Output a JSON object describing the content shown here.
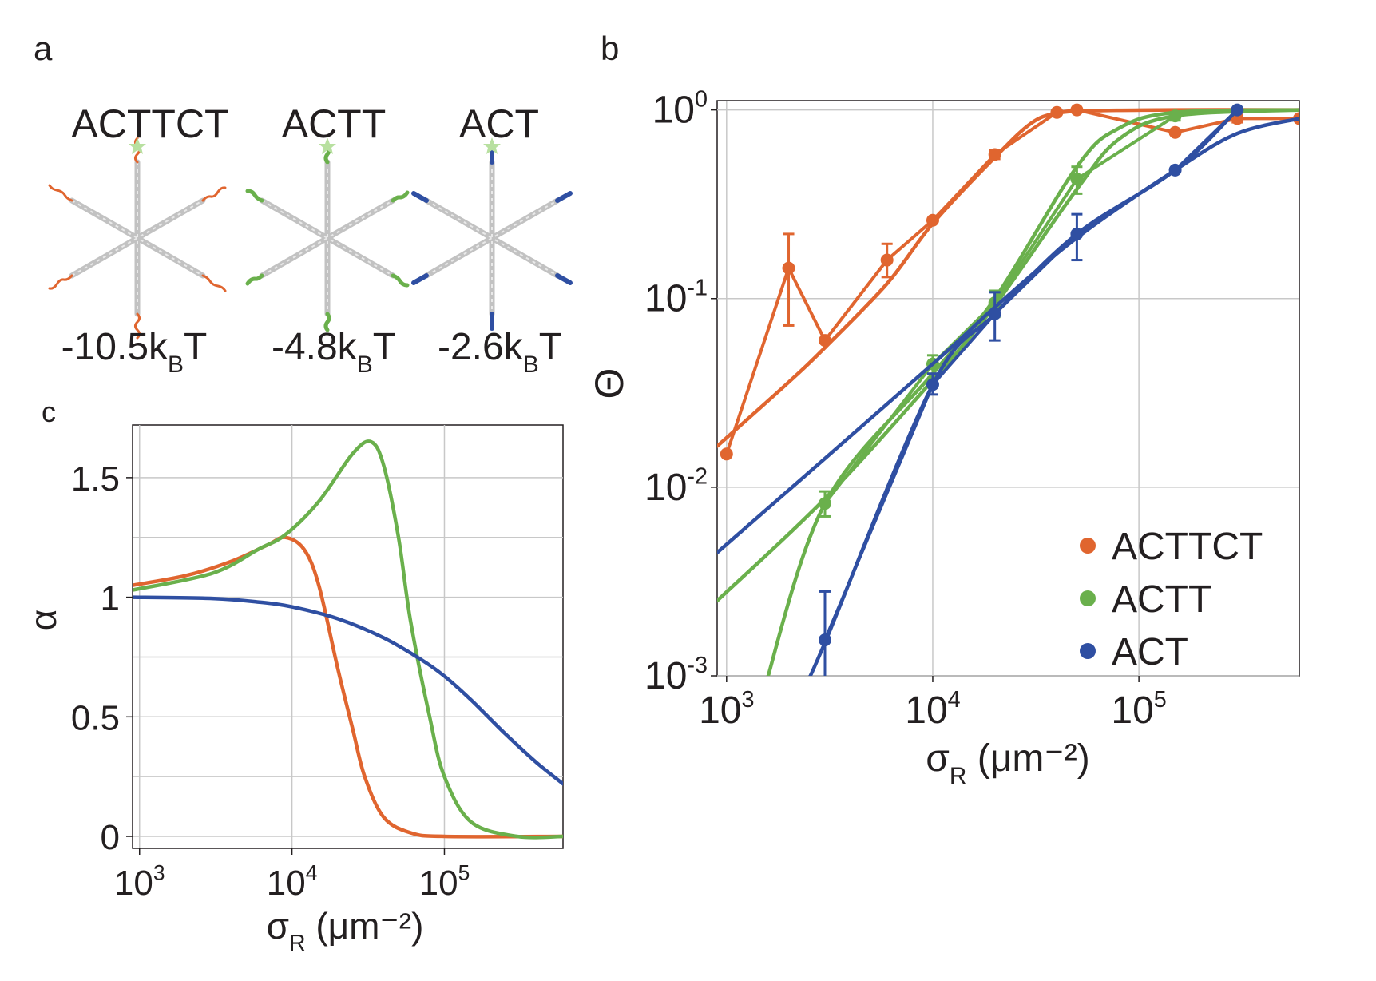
{
  "panels": {
    "a": {
      "label": "a",
      "molecules": [
        {
          "sequence": "ACTTCT",
          "energy_prefix": "-10.5k",
          "energy_sub": "B",
          "energy_suffix": "T",
          "color": "#e0652f",
          "icon": "dna-star-nanostructure-icon"
        },
        {
          "sequence": "ACTT",
          "energy_prefix": "-4.8k",
          "energy_sub": "B",
          "energy_suffix": "T",
          "color": "#6ab04c",
          "icon": "dna-star-nanostructure-icon"
        },
        {
          "sequence": "ACT",
          "energy_prefix": "-2.6k",
          "energy_sub": "B",
          "energy_suffix": "T",
          "color": "#2f4fa2",
          "icon": "dna-star-nanostructure-icon"
        }
      ]
    },
    "b": {
      "label": "b"
    },
    "c": {
      "label": "c"
    }
  },
  "colors": {
    "ACTTCT": "#e0652f",
    "ACTT": "#6ab04c",
    "ACT": "#2f4fa2",
    "grid": "#c8c8c8",
    "axis": "#231f20"
  },
  "chart_data": [
    {
      "id": "b",
      "type": "line",
      "title": "",
      "xscale": "log",
      "yscale": "log",
      "xlim": [
        900,
        600000
      ],
      "ylim": [
        0.001,
        1.12
      ],
      "xticks": [
        {
          "value": 1000,
          "base": "10",
          "exp": "3"
        },
        {
          "value": 10000,
          "base": "10",
          "exp": "4"
        },
        {
          "value": 100000,
          "base": "10",
          "exp": "5"
        }
      ],
      "yticks": [
        {
          "value": 1,
          "base": "10",
          "exp": "0"
        },
        {
          "value": 0.1,
          "base": "10",
          "exp": "-1"
        },
        {
          "value": 0.01,
          "base": "10",
          "exp": "-2"
        },
        {
          "value": 0.001,
          "base": "10",
          "exp": "-3"
        }
      ],
      "xlabel": {
        "main": "σ",
        "sub": "R",
        "unit": " (μm⁻²)"
      },
      "ylabel": "Θ",
      "grid": true,
      "legend": {
        "position": "bottom-right",
        "entries": [
          "ACTTCT",
          "ACTT",
          "ACT"
        ]
      },
      "series": [
        {
          "name": "ACTTCT",
          "color": "#e0652f",
          "points": [
            {
              "x": 1000,
              "y": 0.015
            },
            {
              "x": 2000,
              "y": 0.145,
              "ylo": 0.072,
              "yhi": 0.22
            },
            {
              "x": 3000,
              "y": 0.06
            },
            {
              "x": 6000,
              "y": 0.16,
              "ylo": 0.13,
              "yhi": 0.195
            },
            {
              "x": 10000,
              "y": 0.26
            },
            {
              "x": 20000,
              "y": 0.58,
              "ylo": 0.55,
              "yhi": 0.61
            },
            {
              "x": 40000,
              "y": 0.97
            },
            {
              "x": 50000,
              "y": 1.0
            },
            {
              "x": 150000,
              "y": 0.76
            },
            {
              "x": 300000,
              "y": 0.9,
              "ylo": 0.86,
              "yhi": 0.94
            },
            {
              "x": 600000,
              "y": 0.9
            }
          ],
          "fits": [
            [
              [
                900,
                0.0165
              ],
              [
                2000,
                0.036
              ],
              [
                3000,
                0.055
              ],
              [
                6000,
                0.12
              ],
              [
                10000,
                0.25
              ],
              [
                20000,
                0.56
              ],
              [
                30000,
                0.85
              ],
              [
                40000,
                0.96
              ],
              [
                60000,
                0.99
              ],
              [
                150000,
                1.0
              ],
              [
                600000,
                1.0
              ]
            ]
          ]
        },
        {
          "name": "ACTT",
          "color": "#6ab04c",
          "points": [
            {
              "x": 3000,
              "y": 0.0082,
              "ylo": 0.007,
              "yhi": 0.0095
            },
            {
              "x": 10000,
              "y": 0.045,
              "ylo": 0.038,
              "yhi": 0.05
            },
            {
              "x": 20000,
              "y": 0.095,
              "ylo": 0.08,
              "yhi": 0.11
            },
            {
              "x": 50000,
              "y": 0.43,
              "ylo": 0.36,
              "yhi": 0.5
            },
            {
              "x": 150000,
              "y": 0.93,
              "ylo": 0.88,
              "yhi": 0.97
            }
          ],
          "fits": [
            [
              [
                900,
                0.0025
              ],
              [
                3000,
                0.0087
              ],
              [
                10000,
                0.037
              ],
              [
                20000,
                0.092
              ],
              [
                50000,
                0.38
              ],
              [
                80000,
                0.7
              ],
              [
                150000,
                0.93
              ],
              [
                600000,
                1.0
              ]
            ],
            [
              [
                1500,
                0.0008
              ],
              [
                3000,
                0.0082
              ],
              [
                10000,
                0.04
              ],
              [
                20000,
                0.1
              ],
              [
                50000,
                0.5
              ],
              [
                80000,
                0.8
              ],
              [
                150000,
                0.97
              ],
              [
                600000,
                1.0
              ]
            ]
          ]
        },
        {
          "name": "ACT",
          "color": "#2f4fa2",
          "points": [
            {
              "x": 3000,
              "y": 0.00155,
              "ylo": 0.0008,
              "yhi": 0.0028
            },
            {
              "x": 10000,
              "y": 0.035,
              "ylo": 0.031,
              "yhi": 0.04
            },
            {
              "x": 20000,
              "y": 0.083,
              "ylo": 0.06,
              "yhi": 0.108
            },
            {
              "x": 50000,
              "y": 0.22,
              "ylo": 0.16,
              "yhi": 0.28
            },
            {
              "x": 150000,
              "y": 0.48
            },
            {
              "x": 300000,
              "y": 1.0
            }
          ],
          "fits": [
            [
              [
                900,
                0.0045
              ],
              [
                10000,
                0.045
              ],
              [
                20000,
                0.09
              ],
              [
                50000,
                0.21
              ],
              [
                150000,
                0.48
              ],
              [
                300000,
                0.75
              ],
              [
                600000,
                0.9
              ]
            ],
            [
              [
                2300,
                0.0008
              ],
              [
                3000,
                0.0015
              ],
              [
                10000,
                0.035
              ],
              [
                20000,
                0.083
              ],
              [
                50000,
                0.22
              ],
              [
                150000,
                0.48
              ],
              [
                300000,
                1.0
              ]
            ]
          ]
        }
      ]
    },
    {
      "id": "c",
      "type": "line",
      "title": "",
      "xscale": "log",
      "yscale": "linear",
      "xlim": [
        900,
        600000
      ],
      "ylim": [
        -0.05,
        1.72
      ],
      "xticks": [
        {
          "value": 1000,
          "base": "10",
          "exp": "3"
        },
        {
          "value": 10000,
          "base": "10",
          "exp": "4"
        },
        {
          "value": 100000,
          "base": "10",
          "exp": "5"
        }
      ],
      "yticks": [
        {
          "value": 0,
          "label": "0"
        },
        {
          "value": 0.5,
          "label": "0.5"
        },
        {
          "value": 1,
          "label": "1"
        },
        {
          "value": 1.5,
          "label": "1.5"
        }
      ],
      "xlabel": {
        "main": "σ",
        "sub": "R",
        "unit": " (μm⁻²)"
      },
      "ylabel": "α",
      "grid": true,
      "series": [
        {
          "name": "ACTTCT",
          "color": "#e0652f",
          "points": [
            [
              900,
              1.05
            ],
            [
              2000,
              1.09
            ],
            [
              4000,
              1.15
            ],
            [
              7000,
              1.22
            ],
            [
              9000,
              1.25
            ],
            [
              12000,
              1.2
            ],
            [
              15000,
              1.05
            ],
            [
              20000,
              0.7
            ],
            [
              25000,
              0.45
            ],
            [
              30000,
              0.25
            ],
            [
              40000,
              0.08
            ],
            [
              60000,
              0.015
            ],
            [
              100000,
              0.0
            ],
            [
              600000,
              0.0
            ]
          ]
        },
        {
          "name": "ACTT",
          "color": "#6ab04c",
          "points": [
            [
              900,
              1.03
            ],
            [
              3000,
              1.1
            ],
            [
              6000,
              1.2
            ],
            [
              9000,
              1.26
            ],
            [
              15000,
              1.4
            ],
            [
              25000,
              1.6
            ],
            [
              33000,
              1.65
            ],
            [
              40000,
              1.55
            ],
            [
              50000,
              1.25
            ],
            [
              60000,
              0.9
            ],
            [
              80000,
              0.5
            ],
            [
              100000,
              0.25
            ],
            [
              150000,
              0.06
            ],
            [
              300000,
              0.0
            ],
            [
              600000,
              0.0
            ]
          ]
        },
        {
          "name": "ACT",
          "color": "#2f4fa2",
          "points": [
            [
              900,
              1.0
            ],
            [
              3000,
              0.995
            ],
            [
              6000,
              0.98
            ],
            [
              10000,
              0.96
            ],
            [
              20000,
              0.91
            ],
            [
              40000,
              0.83
            ],
            [
              70000,
              0.74
            ],
            [
              100000,
              0.67
            ],
            [
              150000,
              0.57
            ],
            [
              250000,
              0.43
            ],
            [
              400000,
              0.31
            ],
            [
              600000,
              0.22
            ]
          ]
        }
      ]
    }
  ]
}
